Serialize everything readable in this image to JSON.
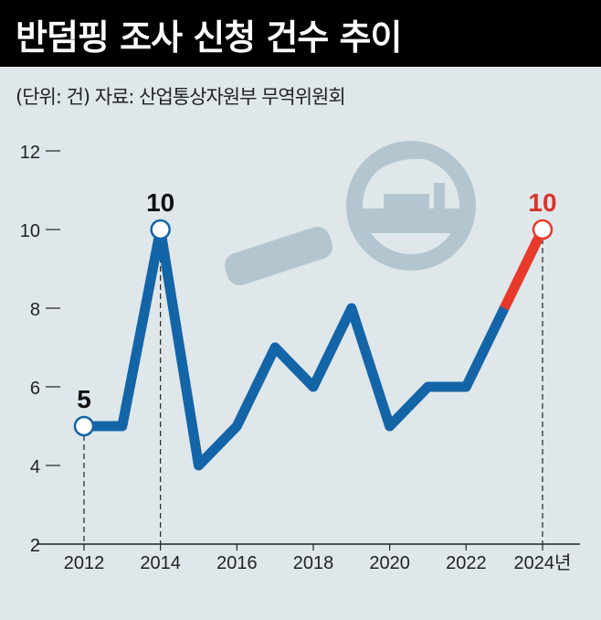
{
  "header": {
    "title": "반덤핑 조사 신청 건수 추이",
    "subtitle": "(단위: 건)  자료: 산업통상자원부 무역위원회"
  },
  "chart_data": {
    "type": "line",
    "title": "반덤핑 조사 신청 건수 추이",
    "unit": "건",
    "x": [
      2012,
      2013,
      2014,
      2015,
      2016,
      2017,
      2018,
      2019,
      2020,
      2021,
      2022,
      2023,
      2024
    ],
    "values": [
      5,
      5,
      10,
      4,
      5,
      7,
      6,
      8,
      5,
      6,
      6,
      8,
      10
    ],
    "xticks": [
      "2012",
      "2014",
      "2016",
      "2018",
      "2020",
      "2022",
      "2024년"
    ],
    "yticks": [
      "2",
      "4",
      "6",
      "8",
      "10",
      "12"
    ],
    "ylim": [
      2,
      12
    ],
    "labels": [
      {
        "x": 2012,
        "text": "5"
      },
      {
        "x": 2014,
        "text": "10"
      },
      {
        "x": 2024,
        "text": "10"
      }
    ],
    "highlight_from": 2023,
    "colors": {
      "line": "#1464a8",
      "highlight": "#e8392b",
      "label_highlight": "#d8332a"
    }
  }
}
